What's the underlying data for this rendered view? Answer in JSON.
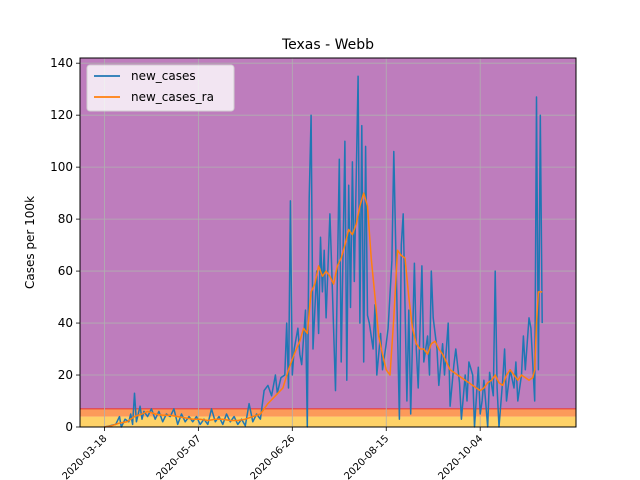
{
  "chart_data": {
    "type": "line",
    "title": "Texas - Webb",
    "xlabel": "",
    "ylabel": "Cases per 100k",
    "xlim": [
      "2020-03-05",
      "2020-11-24"
    ],
    "ylim": [
      0,
      142
    ],
    "x_ticks": [
      "2020-03-18",
      "2020-05-07",
      "2020-06-26",
      "2020-08-15",
      "2020-10-04"
    ],
    "y_ticks": [
      0,
      20,
      40,
      60,
      80,
      100,
      120,
      140
    ],
    "grid": true,
    "legend": "top-left",
    "bands": [
      {
        "from": 0,
        "to": 4,
        "color": "#fed268"
      },
      {
        "from": 4,
        "to": 7,
        "color": "#fc9a5a"
      },
      {
        "from": 7,
        "to": 142,
        "color": "#be7dbd"
      }
    ],
    "series": [
      {
        "name": "new_cases",
        "color": "#1f77b4",
        "points": [
          [
            "2020-03-18",
            0
          ],
          [
            "2020-03-21",
            0.5
          ],
          [
            "2020-03-24",
            1
          ],
          [
            "2020-03-26",
            4
          ],
          [
            "2020-03-27",
            0
          ],
          [
            "2020-03-29",
            3
          ],
          [
            "2020-03-31",
            2
          ],
          [
            "2020-04-01",
            5
          ],
          [
            "2020-04-02",
            1
          ],
          [
            "2020-04-03",
            13
          ],
          [
            "2020-04-04",
            2
          ],
          [
            "2020-04-06",
            8
          ],
          [
            "2020-04-07",
            3
          ],
          [
            "2020-04-08",
            6
          ],
          [
            "2020-04-10",
            4
          ],
          [
            "2020-04-12",
            7
          ],
          [
            "2020-04-14",
            3
          ],
          [
            "2020-04-16",
            6
          ],
          [
            "2020-04-18",
            2
          ],
          [
            "2020-04-20",
            5
          ],
          [
            "2020-04-22",
            4
          ],
          [
            "2020-04-24",
            7
          ],
          [
            "2020-04-26",
            1
          ],
          [
            "2020-04-28",
            5
          ],
          [
            "2020-04-30",
            2
          ],
          [
            "2020-05-02",
            4
          ],
          [
            "2020-05-04",
            2
          ],
          [
            "2020-05-06",
            4
          ],
          [
            "2020-05-08",
            1
          ],
          [
            "2020-05-10",
            3
          ],
          [
            "2020-05-12",
            1
          ],
          [
            "2020-05-14",
            7
          ],
          [
            "2020-05-16",
            2
          ],
          [
            "2020-05-18",
            4
          ],
          [
            "2020-05-20",
            1
          ],
          [
            "2020-05-22",
            5
          ],
          [
            "2020-05-24",
            2
          ],
          [
            "2020-05-26",
            4
          ],
          [
            "2020-05-28",
            1
          ],
          [
            "2020-05-30",
            3
          ],
          [
            "2020-06-01",
            0.5
          ],
          [
            "2020-06-03",
            9
          ],
          [
            "2020-06-05",
            2
          ],
          [
            "2020-06-07",
            5
          ],
          [
            "2020-06-09",
            3
          ],
          [
            "2020-06-11",
            14
          ],
          [
            "2020-06-13",
            16
          ],
          [
            "2020-06-15",
            12
          ],
          [
            "2020-06-17",
            20
          ],
          [
            "2020-06-18",
            13
          ],
          [
            "2020-06-20",
            19
          ],
          [
            "2020-06-22",
            20
          ],
          [
            "2020-06-23",
            40
          ],
          [
            "2020-06-24",
            15
          ],
          [
            "2020-06-25",
            87
          ],
          [
            "2020-06-26",
            20
          ],
          [
            "2020-06-27",
            30
          ],
          [
            "2020-06-29",
            38
          ],
          [
            "2020-06-30",
            28
          ],
          [
            "2020-07-01",
            24
          ],
          [
            "2020-07-03",
            45
          ],
          [
            "2020-07-04",
            0
          ],
          [
            "2020-07-05",
            88
          ],
          [
            "2020-07-06",
            120
          ],
          [
            "2020-07-07",
            30
          ],
          [
            "2020-07-09",
            60
          ],
          [
            "2020-07-10",
            36
          ],
          [
            "2020-07-11",
            73
          ],
          [
            "2020-07-12",
            52
          ],
          [
            "2020-07-13",
            68
          ],
          [
            "2020-07-14",
            42
          ],
          [
            "2020-07-16",
            82
          ],
          [
            "2020-07-17",
            60
          ],
          [
            "2020-07-19",
            14
          ],
          [
            "2020-07-21",
            103
          ],
          [
            "2020-07-22",
            25
          ],
          [
            "2020-07-24",
            110
          ],
          [
            "2020-07-25",
            18
          ],
          [
            "2020-07-26",
            93
          ],
          [
            "2020-07-27",
            46
          ],
          [
            "2020-07-28",
            102
          ],
          [
            "2020-07-29",
            56
          ],
          [
            "2020-07-31",
            135
          ],
          [
            "2020-08-01",
            40
          ],
          [
            "2020-08-02",
            116
          ],
          [
            "2020-08-03",
            25
          ],
          [
            "2020-08-04",
            108
          ],
          [
            "2020-08-05",
            43
          ],
          [
            "2020-08-06",
            40
          ],
          [
            "2020-08-08",
            30
          ],
          [
            "2020-08-09",
            47
          ],
          [
            "2020-08-10",
            20
          ],
          [
            "2020-08-12",
            36
          ],
          [
            "2020-08-13",
            22
          ],
          [
            "2020-08-15",
            32
          ],
          [
            "2020-08-16",
            38
          ],
          [
            "2020-08-18",
            64
          ],
          [
            "2020-08-19",
            106
          ],
          [
            "2020-08-20",
            72
          ],
          [
            "2020-08-22",
            3
          ],
          [
            "2020-08-23",
            70
          ],
          [
            "2020-08-24",
            82
          ],
          [
            "2020-08-26",
            10
          ],
          [
            "2020-08-27",
            45
          ],
          [
            "2020-08-28",
            5
          ],
          [
            "2020-08-30",
            63
          ],
          [
            "2020-08-31",
            30
          ],
          [
            "2020-09-01",
            15
          ],
          [
            "2020-09-03",
            62
          ],
          [
            "2020-09-04",
            25
          ],
          [
            "2020-09-06",
            35
          ],
          [
            "2020-09-07",
            20
          ],
          [
            "2020-09-08",
            60
          ],
          [
            "2020-09-09",
            42
          ],
          [
            "2020-09-11",
            30
          ],
          [
            "2020-09-12",
            16
          ],
          [
            "2020-09-14",
            32
          ],
          [
            "2020-09-15",
            20
          ],
          [
            "2020-09-17",
            40
          ],
          [
            "2020-09-18",
            8
          ],
          [
            "2020-09-20",
            24
          ],
          [
            "2020-09-21",
            30
          ],
          [
            "2020-09-23",
            17
          ],
          [
            "2020-09-24",
            3
          ],
          [
            "2020-09-26",
            20
          ],
          [
            "2020-09-27",
            10
          ],
          [
            "2020-09-28",
            25
          ],
          [
            "2020-09-30",
            20
          ],
          [
            "2020-10-01",
            0
          ],
          [
            "2020-10-03",
            23
          ],
          [
            "2020-10-04",
            5
          ],
          [
            "2020-10-05",
            10
          ],
          [
            "2020-10-06",
            18
          ],
          [
            "2020-10-08",
            0
          ],
          [
            "2020-10-09",
            21
          ],
          [
            "2020-10-11",
            12
          ],
          [
            "2020-10-12",
            60
          ],
          [
            "2020-10-13",
            15
          ],
          [
            "2020-10-14",
            0
          ],
          [
            "2020-10-16",
            18
          ],
          [
            "2020-10-17",
            30
          ],
          [
            "2020-10-18",
            10
          ],
          [
            "2020-10-20",
            22
          ],
          [
            "2020-10-22",
            15
          ],
          [
            "2020-10-23",
            25
          ],
          [
            "2020-10-24",
            10
          ],
          [
            "2020-10-26",
            20
          ],
          [
            "2020-10-27",
            35
          ],
          [
            "2020-10-28",
            22
          ],
          [
            "2020-10-30",
            42
          ],
          [
            "2020-10-31",
            38
          ],
          [
            "2020-11-02",
            10
          ],
          [
            "2020-11-03",
            127
          ],
          [
            "2020-11-04",
            22
          ],
          [
            "2020-11-05",
            120
          ],
          [
            "2020-11-06",
            40
          ]
        ]
      },
      {
        "name": "new_cases_ra",
        "color": "#ff7f0e",
        "points": [
          [
            "2020-03-18",
            0
          ],
          [
            "2020-03-22",
            0.5
          ],
          [
            "2020-03-26",
            1.5
          ],
          [
            "2020-03-30",
            2
          ],
          [
            "2020-04-03",
            4
          ],
          [
            "2020-04-07",
            5
          ],
          [
            "2020-04-10",
            6
          ],
          [
            "2020-04-14",
            5
          ],
          [
            "2020-04-18",
            4.5
          ],
          [
            "2020-04-22",
            4.5
          ],
          [
            "2020-04-26",
            4
          ],
          [
            "2020-04-30",
            3.5
          ],
          [
            "2020-05-04",
            3
          ],
          [
            "2020-05-08",
            3
          ],
          [
            "2020-05-12",
            2.5
          ],
          [
            "2020-05-16",
            3
          ],
          [
            "2020-05-20",
            3
          ],
          [
            "2020-05-24",
            2.5
          ],
          [
            "2020-05-28",
            2.5
          ],
          [
            "2020-06-01",
            3
          ],
          [
            "2020-06-05",
            4
          ],
          [
            "2020-06-09",
            5
          ],
          [
            "2020-06-13",
            9
          ],
          [
            "2020-06-17",
            12
          ],
          [
            "2020-06-21",
            15
          ],
          [
            "2020-06-24",
            22
          ],
          [
            "2020-06-27",
            28
          ],
          [
            "2020-06-30",
            33
          ],
          [
            "2020-07-02",
            38
          ],
          [
            "2020-07-04",
            36
          ],
          [
            "2020-07-06",
            52
          ],
          [
            "2020-07-08",
            55
          ],
          [
            "2020-07-10",
            62
          ],
          [
            "2020-07-12",
            58
          ],
          [
            "2020-07-14",
            60
          ],
          [
            "2020-07-16",
            58
          ],
          [
            "2020-07-18",
            55
          ],
          [
            "2020-07-20",
            62
          ],
          [
            "2020-07-22",
            65
          ],
          [
            "2020-07-24",
            70
          ],
          [
            "2020-07-26",
            76
          ],
          [
            "2020-07-28",
            74
          ],
          [
            "2020-07-30",
            78
          ],
          [
            "2020-08-01",
            85
          ],
          [
            "2020-08-03",
            90
          ],
          [
            "2020-08-05",
            85
          ],
          [
            "2020-08-07",
            65
          ],
          [
            "2020-08-09",
            50
          ],
          [
            "2020-08-11",
            35
          ],
          [
            "2020-08-13",
            28
          ],
          [
            "2020-08-15",
            22
          ],
          [
            "2020-08-17",
            20
          ],
          [
            "2020-08-19",
            42
          ],
          [
            "2020-08-21",
            68
          ],
          [
            "2020-08-23",
            66
          ],
          [
            "2020-08-25",
            65
          ],
          [
            "2020-08-27",
            50
          ],
          [
            "2020-08-29",
            38
          ],
          [
            "2020-08-31",
            32
          ],
          [
            "2020-09-02",
            30
          ],
          [
            "2020-09-04",
            30
          ],
          [
            "2020-09-06",
            28
          ],
          [
            "2020-09-08",
            32
          ],
          [
            "2020-09-10",
            33
          ],
          [
            "2020-09-12",
            30
          ],
          [
            "2020-09-14",
            28
          ],
          [
            "2020-09-16",
            25
          ],
          [
            "2020-09-18",
            22
          ],
          [
            "2020-09-20",
            21
          ],
          [
            "2020-09-22",
            20
          ],
          [
            "2020-09-24",
            19
          ],
          [
            "2020-09-26",
            18
          ],
          [
            "2020-09-28",
            17
          ],
          [
            "2020-09-30",
            16
          ],
          [
            "2020-10-02",
            15
          ],
          [
            "2020-10-04",
            14
          ],
          [
            "2020-10-06",
            15
          ],
          [
            "2020-10-08",
            17
          ],
          [
            "2020-10-10",
            18
          ],
          [
            "2020-10-12",
            20
          ],
          [
            "2020-10-14",
            17
          ],
          [
            "2020-10-16",
            16
          ],
          [
            "2020-10-18",
            20
          ],
          [
            "2020-10-20",
            22
          ],
          [
            "2020-10-22",
            20
          ],
          [
            "2020-10-24",
            18
          ],
          [
            "2020-10-26",
            20
          ],
          [
            "2020-10-28",
            19
          ],
          [
            "2020-10-30",
            18
          ],
          [
            "2020-11-01",
            19
          ],
          [
            "2020-11-02",
            22
          ],
          [
            "2020-11-03",
            40
          ],
          [
            "2020-11-04",
            52
          ],
          [
            "2020-11-06",
            52
          ]
        ]
      }
    ]
  }
}
